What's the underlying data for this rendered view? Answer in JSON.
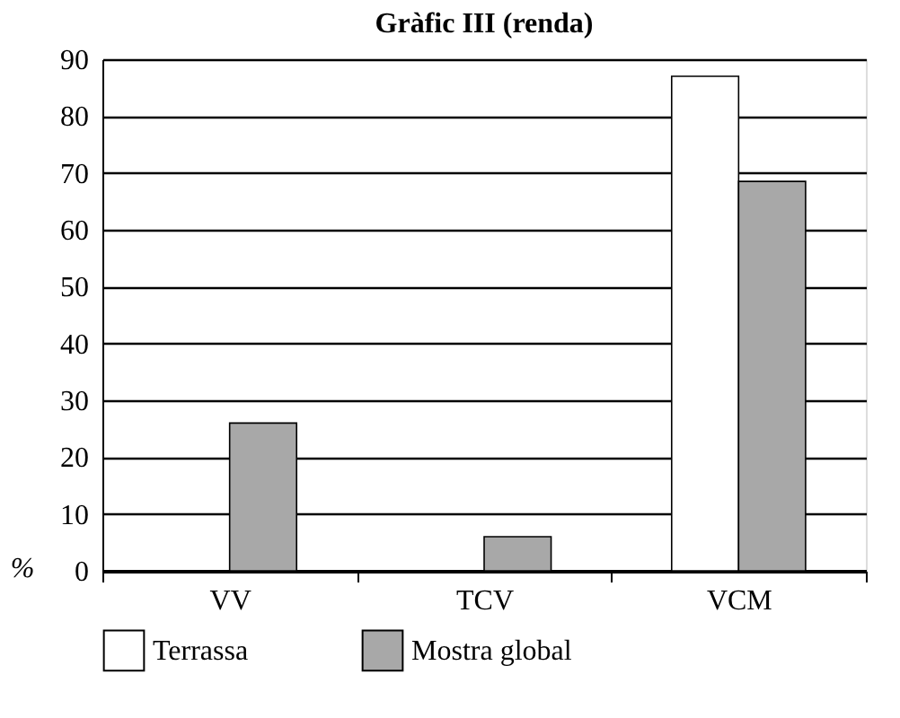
{
  "chart_data": {
    "type": "bar",
    "title": "Gràfic III (renda)",
    "ylabel": "%",
    "categories": [
      "VV",
      "TCV",
      "VCM"
    ],
    "series": [
      {
        "name": "Terrassa",
        "color": "#ffffff",
        "values": [
          null,
          null,
          87
        ]
      },
      {
        "name": "Mostra global",
        "color": "#a8a8a8",
        "values": [
          26,
          6,
          68.5
        ]
      }
    ],
    "ylim": [
      0,
      90
    ],
    "yticks": [
      0,
      10,
      20,
      30,
      40,
      50,
      60,
      70,
      80,
      90
    ],
    "grid": "y",
    "legend": "bottom"
  }
}
